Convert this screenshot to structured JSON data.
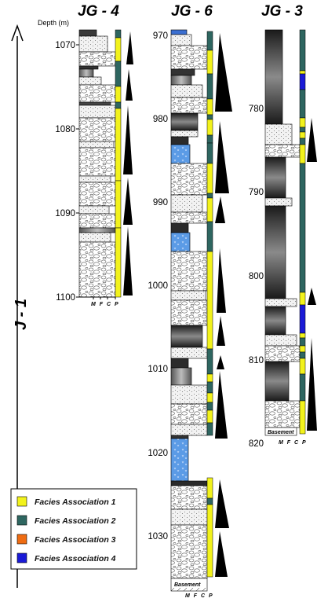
{
  "axis_label": "J - 1",
  "depth_header": "Depth (m)",
  "grain_scale": "M F C P",
  "basement_label": "Basement",
  "wells": [
    {
      "name": "JG - 4",
      "depths": [
        "1070",
        "1080",
        "1090",
        "1100"
      ]
    },
    {
      "name": "JG - 6",
      "depths": [
        "970",
        "980",
        "990",
        "1000",
        "1010",
        "1020",
        "1030"
      ]
    },
    {
      "name": "JG - 3",
      "depths": [
        "780",
        "790",
        "800",
        "810",
        "820"
      ]
    }
  ],
  "legend": [
    {
      "label": "Facies Association 1",
      "color": "#f2f21c"
    },
    {
      "label": "Facies Association 2",
      "color": "#2e6660"
    },
    {
      "label": "Facies Association 3",
      "color": "#ef6c12"
    },
    {
      "label": "Facies Association 4",
      "color": "#1a1ad6"
    }
  ]
}
